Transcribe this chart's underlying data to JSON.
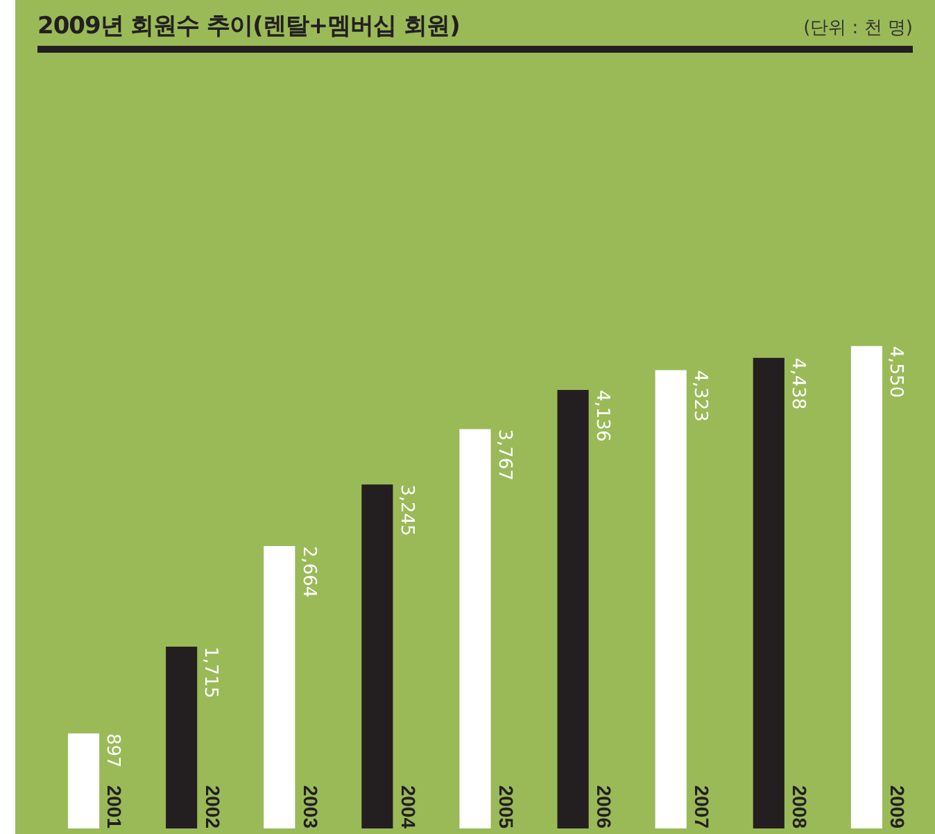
{
  "chart_data": {
    "type": "bar",
    "title": "2009년 회원수 추이(렌탈+멤버십 회원)",
    "annotations": [
      "(단위 : 천 명)"
    ],
    "categories": [
      "2001",
      "2002",
      "2003",
      "2004",
      "2005",
      "2006",
      "2007",
      "2008",
      "2009"
    ],
    "values": [
      897,
      1715,
      2664,
      3245,
      3767,
      4136,
      4323,
      4438,
      4550
    ],
    "value_labels": [
      "897",
      "1,715",
      "2,664",
      "3,245",
      "3,767",
      "4,136",
      "4,323",
      "4,438",
      "4,550"
    ],
    "colors": [
      "#ffffff",
      "#231f20",
      "#ffffff",
      "#231f20",
      "#ffffff",
      "#231f20",
      "#ffffff",
      "#231f20",
      "#ffffff"
    ],
    "legend": false
  }
}
